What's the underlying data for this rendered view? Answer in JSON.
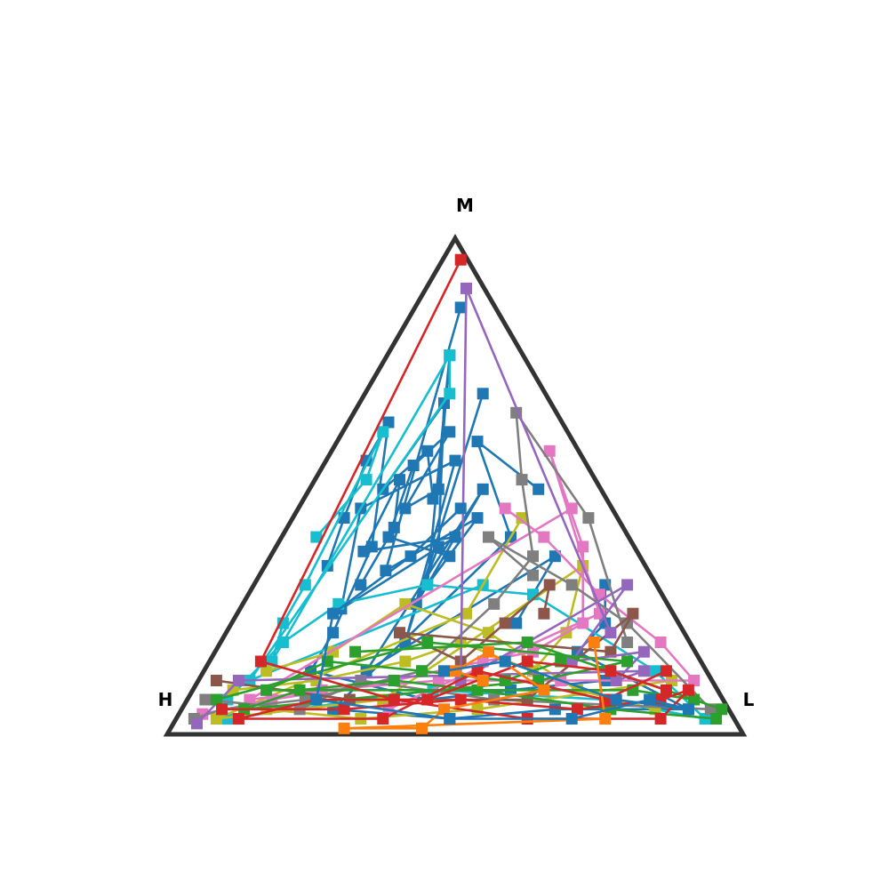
{
  "chart_data": {
    "type": "scatter",
    "projection": "ternary",
    "title": "",
    "vertices": {
      "top": "M",
      "left": "H",
      "right": "L"
    },
    "grid": false,
    "legend": "none",
    "frame_color": "#333333",
    "palette": [
      "#1f77b4",
      "#ff7f0e",
      "#2ca02c",
      "#d62728",
      "#9467bd",
      "#8c564b",
      "#e377c2",
      "#7f7f7f",
      "#bcbd22",
      "#17becf"
    ],
    "marker": "square",
    "series": [
      {
        "color": "#1f77b4",
        "points": [
          [
            0.33,
            0.36,
            0.31
          ],
          [
            0.42,
            0.4,
            0.18
          ],
          [
            0.3,
            0.55,
            0.15
          ],
          [
            0.2,
            0.62,
            0.18
          ],
          [
            0.36,
            0.46,
            0.18
          ],
          [
            0.28,
            0.5,
            0.22
          ],
          [
            0.12,
            0.78,
            0.1
          ],
          [
            0.4,
            0.3,
            0.3
          ],
          [
            0.24,
            0.44,
            0.32
          ],
          [
            0.46,
            0.33,
            0.21
          ],
          [
            0.05,
            0.88,
            0.07
          ]
        ]
      },
      {
        "color": "#1f77b4",
        "points": [
          [
            0.52,
            0.3,
            0.18
          ],
          [
            0.4,
            0.42,
            0.18
          ],
          [
            0.34,
            0.52,
            0.14
          ],
          [
            0.48,
            0.37,
            0.15
          ],
          [
            0.3,
            0.4,
            0.3
          ],
          [
            0.58,
            0.25,
            0.17
          ],
          [
            0.44,
            0.46,
            0.1
          ],
          [
            0.22,
            0.56,
            0.22
          ],
          [
            0.5,
            0.18,
            0.32
          ],
          [
            0.1,
            0.7,
            0.2
          ]
        ]
      },
      {
        "color": "#1f77b4",
        "points": [
          [
            0.3,
            0.48,
            0.22
          ],
          [
            0.26,
            0.58,
            0.16
          ],
          [
            0.38,
            0.5,
            0.12
          ],
          [
            0.18,
            0.68,
            0.14
          ],
          [
            0.34,
            0.38,
            0.28
          ],
          [
            0.44,
            0.26,
            0.3
          ],
          [
            0.2,
            0.5,
            0.3
          ],
          [
            0.6,
            0.12,
            0.28
          ],
          [
            0.14,
            0.36,
            0.5
          ],
          [
            0.28,
            0.22,
            0.5
          ]
        ]
      },
      {
        "color": "#1f77b4",
        "points": [
          [
            0.56,
            0.34,
            0.1
          ],
          [
            0.48,
            0.44,
            0.08
          ],
          [
            0.38,
            0.56,
            0.06
          ],
          [
            0.3,
            0.64,
            0.06
          ],
          [
            0.46,
            0.38,
            0.16
          ],
          [
            0.62,
            0.2,
            0.18
          ],
          [
            0.7,
            0.12,
            0.18
          ],
          [
            0.52,
            0.06,
            0.42
          ],
          [
            0.36,
            0.08,
            0.56
          ],
          [
            0.18,
            0.1,
            0.72
          ]
        ]
      },
      {
        "color": "#1f77b4",
        "points": [
          [
            0.08,
            0.3,
            0.62
          ],
          [
            0.12,
            0.22,
            0.66
          ],
          [
            0.2,
            0.16,
            0.64
          ],
          [
            0.06,
            0.04,
            0.9
          ],
          [
            0.3,
            0.04,
            0.66
          ],
          [
            0.5,
            0.02,
            0.48
          ],
          [
            0.7,
            0.04,
            0.26
          ],
          [
            0.2,
            0.4,
            0.4
          ],
          [
            0.16,
            0.6,
            0.24
          ],
          [
            0.1,
            0.5,
            0.4
          ]
        ]
      },
      {
        "color": "#17becf",
        "points": [
          [
            0.55,
            0.4,
            0.05
          ],
          [
            0.4,
            0.52,
            0.08
          ],
          [
            0.32,
            0.62,
            0.06
          ],
          [
            0.62,
            0.3,
            0.08
          ],
          [
            0.7,
            0.22,
            0.08
          ],
          [
            0.76,
            0.14,
            0.1
          ],
          [
            0.12,
            0.78,
            0.1
          ],
          [
            0.16,
            0.7,
            0.14
          ],
          [
            0.82,
            0.1,
            0.08
          ],
          [
            0.3,
            0.3,
            0.4
          ]
        ]
      },
      {
        "color": "#17becf",
        "points": [
          [
            0.88,
            0.06,
            0.06
          ],
          [
            0.72,
            0.18,
            0.1
          ],
          [
            0.58,
            0.26,
            0.16
          ],
          [
            0.4,
            0.3,
            0.3
          ],
          [
            0.22,
            0.28,
            0.5
          ],
          [
            0.08,
            0.12,
            0.8
          ],
          [
            0.04,
            0.02,
            0.94
          ],
          [
            0.2,
            0.06,
            0.74
          ],
          [
            0.5,
            0.08,
            0.42
          ],
          [
            0.9,
            0.02,
            0.08
          ]
        ]
      },
      {
        "color": "#bcbd22",
        "points": [
          [
            0.86,
            0.08,
            0.06
          ],
          [
            0.7,
            0.1,
            0.2
          ],
          [
            0.52,
            0.14,
            0.34
          ],
          [
            0.4,
            0.18,
            0.42
          ],
          [
            0.3,
            0.12,
            0.58
          ],
          [
            0.2,
            0.2,
            0.6
          ],
          [
            0.1,
            0.34,
            0.56
          ],
          [
            0.6,
            0.06,
            0.34
          ],
          [
            0.92,
            0.02,
            0.06
          ],
          [
            0.36,
            0.24,
            0.4
          ],
          [
            0.16,
            0.44,
            0.4
          ]
        ]
      },
      {
        "color": "#bcbd22",
        "points": [
          [
            0.78,
            0.12,
            0.1
          ],
          [
            0.64,
            0.16,
            0.2
          ],
          [
            0.46,
            0.26,
            0.28
          ],
          [
            0.34,
            0.2,
            0.46
          ],
          [
            0.24,
            0.08,
            0.68
          ],
          [
            0.12,
            0.04,
            0.84
          ],
          [
            0.06,
            0.1,
            0.84
          ],
          [
            0.44,
            0.04,
            0.52
          ],
          [
            0.66,
            0.02,
            0.32
          ],
          [
            0.82,
            0.04,
            0.14
          ]
        ]
      },
      {
        "color": "#e377c2",
        "points": [
          [
            0.18,
            0.46,
            0.36
          ],
          [
            0.14,
            0.4,
            0.46
          ],
          [
            0.1,
            0.28,
            0.62
          ],
          [
            0.04,
            0.18,
            0.78
          ],
          [
            0.02,
            0.1,
            0.88
          ],
          [
            0.26,
            0.1,
            0.64
          ],
          [
            0.48,
            0.1,
            0.42
          ],
          [
            0.7,
            0.08,
            0.22
          ],
          [
            0.84,
            0.06,
            0.1
          ],
          [
            0.06,
            0.46,
            0.48
          ]
        ]
      },
      {
        "color": "#e377c2",
        "points": [
          [
            0.94,
            0.03,
            0.03
          ],
          [
            0.8,
            0.06,
            0.14
          ],
          [
            0.56,
            0.1,
            0.34
          ],
          [
            0.38,
            0.14,
            0.48
          ],
          [
            0.28,
            0.16,
            0.56
          ],
          [
            0.16,
            0.22,
            0.62
          ],
          [
            0.08,
            0.38,
            0.54
          ],
          [
            0.04,
            0.58,
            0.38
          ],
          [
            0.12,
            0.24,
            0.64
          ],
          [
            0.6,
            0.04,
            0.36
          ]
        ]
      },
      {
        "color": "#7f7f7f",
        "points": [
          [
            0.96,
            0.02,
            0.02
          ],
          [
            0.9,
            0.04,
            0.06
          ],
          [
            0.74,
            0.06,
            0.2
          ],
          [
            0.5,
            0.12,
            0.38
          ],
          [
            0.3,
            0.26,
            0.44
          ],
          [
            0.18,
            0.36,
            0.46
          ],
          [
            0.12,
            0.52,
            0.36
          ],
          [
            0.06,
            0.66,
            0.28
          ],
          [
            0.04,
            0.44,
            0.52
          ],
          [
            0.1,
            0.18,
            0.72
          ]
        ]
      },
      {
        "color": "#7f7f7f",
        "points": [
          [
            0.2,
            0.32,
            0.48
          ],
          [
            0.24,
            0.4,
            0.36
          ],
          [
            0.14,
            0.3,
            0.56
          ],
          [
            0.08,
            0.22,
            0.7
          ],
          [
            0.02,
            0.04,
            0.94
          ],
          [
            0.4,
            0.06,
            0.54
          ],
          [
            0.62,
            0.1,
            0.28
          ],
          [
            0.76,
            0.04,
            0.2
          ],
          [
            0.92,
            0.06,
            0.02
          ]
        ]
      },
      {
        "color": "#8c564b",
        "points": [
          [
            0.22,
            0.24,
            0.54
          ],
          [
            0.18,
            0.3,
            0.52
          ],
          [
            0.3,
            0.22,
            0.48
          ],
          [
            0.42,
            0.14,
            0.44
          ],
          [
            0.5,
            0.2,
            0.3
          ],
          [
            0.14,
            0.16,
            0.7
          ],
          [
            0.06,
            0.24,
            0.7
          ],
          [
            0.34,
            0.06,
            0.6
          ],
          [
            0.66,
            0.06,
            0.28
          ],
          [
            0.88,
            0.1,
            0.02
          ]
        ]
      },
      {
        "color": "#9467bd",
        "points": [
          [
            0.96,
            0.01,
            0.03
          ],
          [
            0.84,
            0.1,
            0.06
          ],
          [
            0.1,
            0.12,
            0.78
          ],
          [
            0.16,
            0.1,
            0.74
          ],
          [
            0.08,
            0.16,
            0.76
          ],
          [
            0.22,
            0.14,
            0.64
          ],
          [
            0.04,
            0.3,
            0.66
          ],
          [
            0.44,
            0.1,
            0.46
          ],
          [
            0.02,
            0.92,
            0.06
          ],
          [
            0.12,
            0.2,
            0.68
          ]
        ]
      },
      {
        "color": "#2ca02c",
        "points": [
          [
            0.24,
            0.14,
            0.62
          ],
          [
            0.36,
            0.1,
            0.54
          ],
          [
            0.5,
            0.12,
            0.38
          ],
          [
            0.66,
            0.14,
            0.2
          ],
          [
            0.8,
            0.08,
            0.12
          ],
          [
            0.14,
            0.08,
            0.78
          ],
          [
            0.04,
            0.06,
            0.9
          ],
          [
            0.0,
            0.04,
            0.96
          ],
          [
            0.28,
            0.18,
            0.54
          ],
          [
            0.6,
            0.16,
            0.24
          ]
        ]
      },
      {
        "color": "#2ca02c",
        "points": [
          [
            0.02,
            0.02,
            0.96
          ],
          [
            0.2,
            0.04,
            0.76
          ],
          [
            0.42,
            0.08,
            0.5
          ],
          [
            0.56,
            0.1,
            0.34
          ],
          [
            0.74,
            0.08,
            0.18
          ],
          [
            0.86,
            0.04,
            0.1
          ],
          [
            0.3,
            0.1,
            0.6
          ],
          [
            0.12,
            0.14,
            0.74
          ],
          [
            0.46,
            0.18,
            0.36
          ],
          [
            0.9,
            0.06,
            0.04
          ]
        ]
      },
      {
        "color": "#d62728",
        "points": [
          [
            0.9,
            0.04,
            0.06
          ],
          [
            0.68,
            0.04,
            0.28
          ],
          [
            0.46,
            0.06,
            0.48
          ],
          [
            0.26,
            0.04,
            0.7
          ],
          [
            0.1,
            0.06,
            0.84
          ],
          [
            0.04,
            0.08,
            0.88
          ],
          [
            0.12,
            0.02,
            0.86
          ],
          [
            0.36,
            0.02,
            0.62
          ],
          [
            0.58,
            0.06,
            0.36
          ],
          [
            0.78,
            0.14,
            0.08
          ],
          [
            0.0,
            0.98,
            0.02
          ]
        ]
      },
      {
        "color": "#d62728",
        "points": [
          [
            0.08,
            0.08,
            0.84
          ],
          [
            0.16,
            0.12,
            0.72
          ],
          [
            0.3,
            0.14,
            0.56
          ],
          [
            0.52,
            0.06,
            0.42
          ],
          [
            0.72,
            0.06,
            0.22
          ],
          [
            0.88,
            0.02,
            0.1
          ],
          [
            0.62,
            0.02,
            0.36
          ],
          [
            0.4,
            0.12,
            0.48
          ],
          [
            0.2,
            0.06,
            0.74
          ],
          [
            0.06,
            0.12,
            0.82
          ]
        ]
      },
      {
        "color": "#ff7f0e",
        "points": [
          [
            0.4,
            0.1,
            0.5
          ],
          [
            0.44,
            0.12,
            0.44
          ],
          [
            0.36,
            0.16,
            0.48
          ],
          [
            0.3,
            0.08,
            0.62
          ],
          [
            0.5,
            0.04,
            0.46
          ],
          [
            0.56,
            0.0,
            0.44
          ],
          [
            0.7,
            0.0,
            0.3
          ],
          [
            0.22,
            0.02,
            0.76
          ],
          [
            0.16,
            0.18,
            0.66
          ]
        ]
      },
      {
        "color": "#1f77b4",
        "points": [
          [
            0.46,
            0.12,
            0.42
          ],
          [
            0.34,
            0.14,
            0.52
          ],
          [
            0.18,
            0.06,
            0.76
          ],
          [
            0.06,
            0.04,
            0.9
          ],
          [
            0.12,
            0.06,
            0.82
          ],
          [
            0.28,
            0.02,
            0.7
          ],
          [
            0.5,
            0.02,
            0.48
          ],
          [
            0.72,
            0.06,
            0.22
          ],
          [
            0.6,
            0.24,
            0.16
          ],
          [
            0.4,
            0.36,
            0.24
          ],
          [
            0.26,
            0.46,
            0.28
          ]
        ]
      }
    ]
  }
}
